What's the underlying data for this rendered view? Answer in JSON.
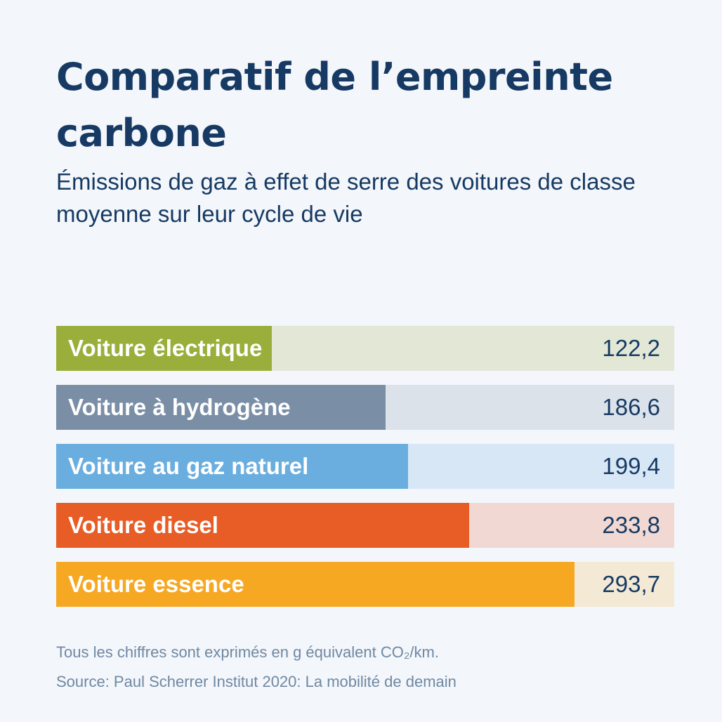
{
  "header": {
    "title": "Comparatif de l’empreinte carbone",
    "subtitle": "Émissions de gaz à effet de serre des voitures de classe moyenne sur leur cycle de vie"
  },
  "chart_data": {
    "type": "bar",
    "orientation": "horizontal",
    "title": "Comparatif de l’empreinte carbone",
    "subtitle": "Émissions de gaz à effet de serre des voitures de classe moyenne sur leur cycle de vie",
    "categories": [
      "Voiture électrique",
      "Voiture à hydrogène",
      "Voiture au gaz naturel",
      "Voiture diesel",
      "Voiture essence"
    ],
    "values": [
      122.2,
      186.6,
      199.4,
      233.8,
      293.7
    ],
    "value_labels": [
      "122,2",
      "186,6",
      "199,4",
      "233,8",
      "293,7"
    ],
    "colors": [
      "#9aae3b",
      "#7a8fa6",
      "#6aaee0",
      "#e85c25",
      "#f6a823"
    ],
    "track_colors": [
      "#e2e7d6",
      "#dce2ea",
      "#d8e7f6",
      "#f2d8d2",
      "#f3e9d5"
    ],
    "xlim": [
      0,
      350
    ],
    "grid": false,
    "legend": "none"
  },
  "footer": {
    "unit_note": "Tous les chiffres sont exprimés en g équivalent CO₂/km.",
    "source": "Source: Paul Scherrer Institut 2020: La mobilité de demain"
  }
}
